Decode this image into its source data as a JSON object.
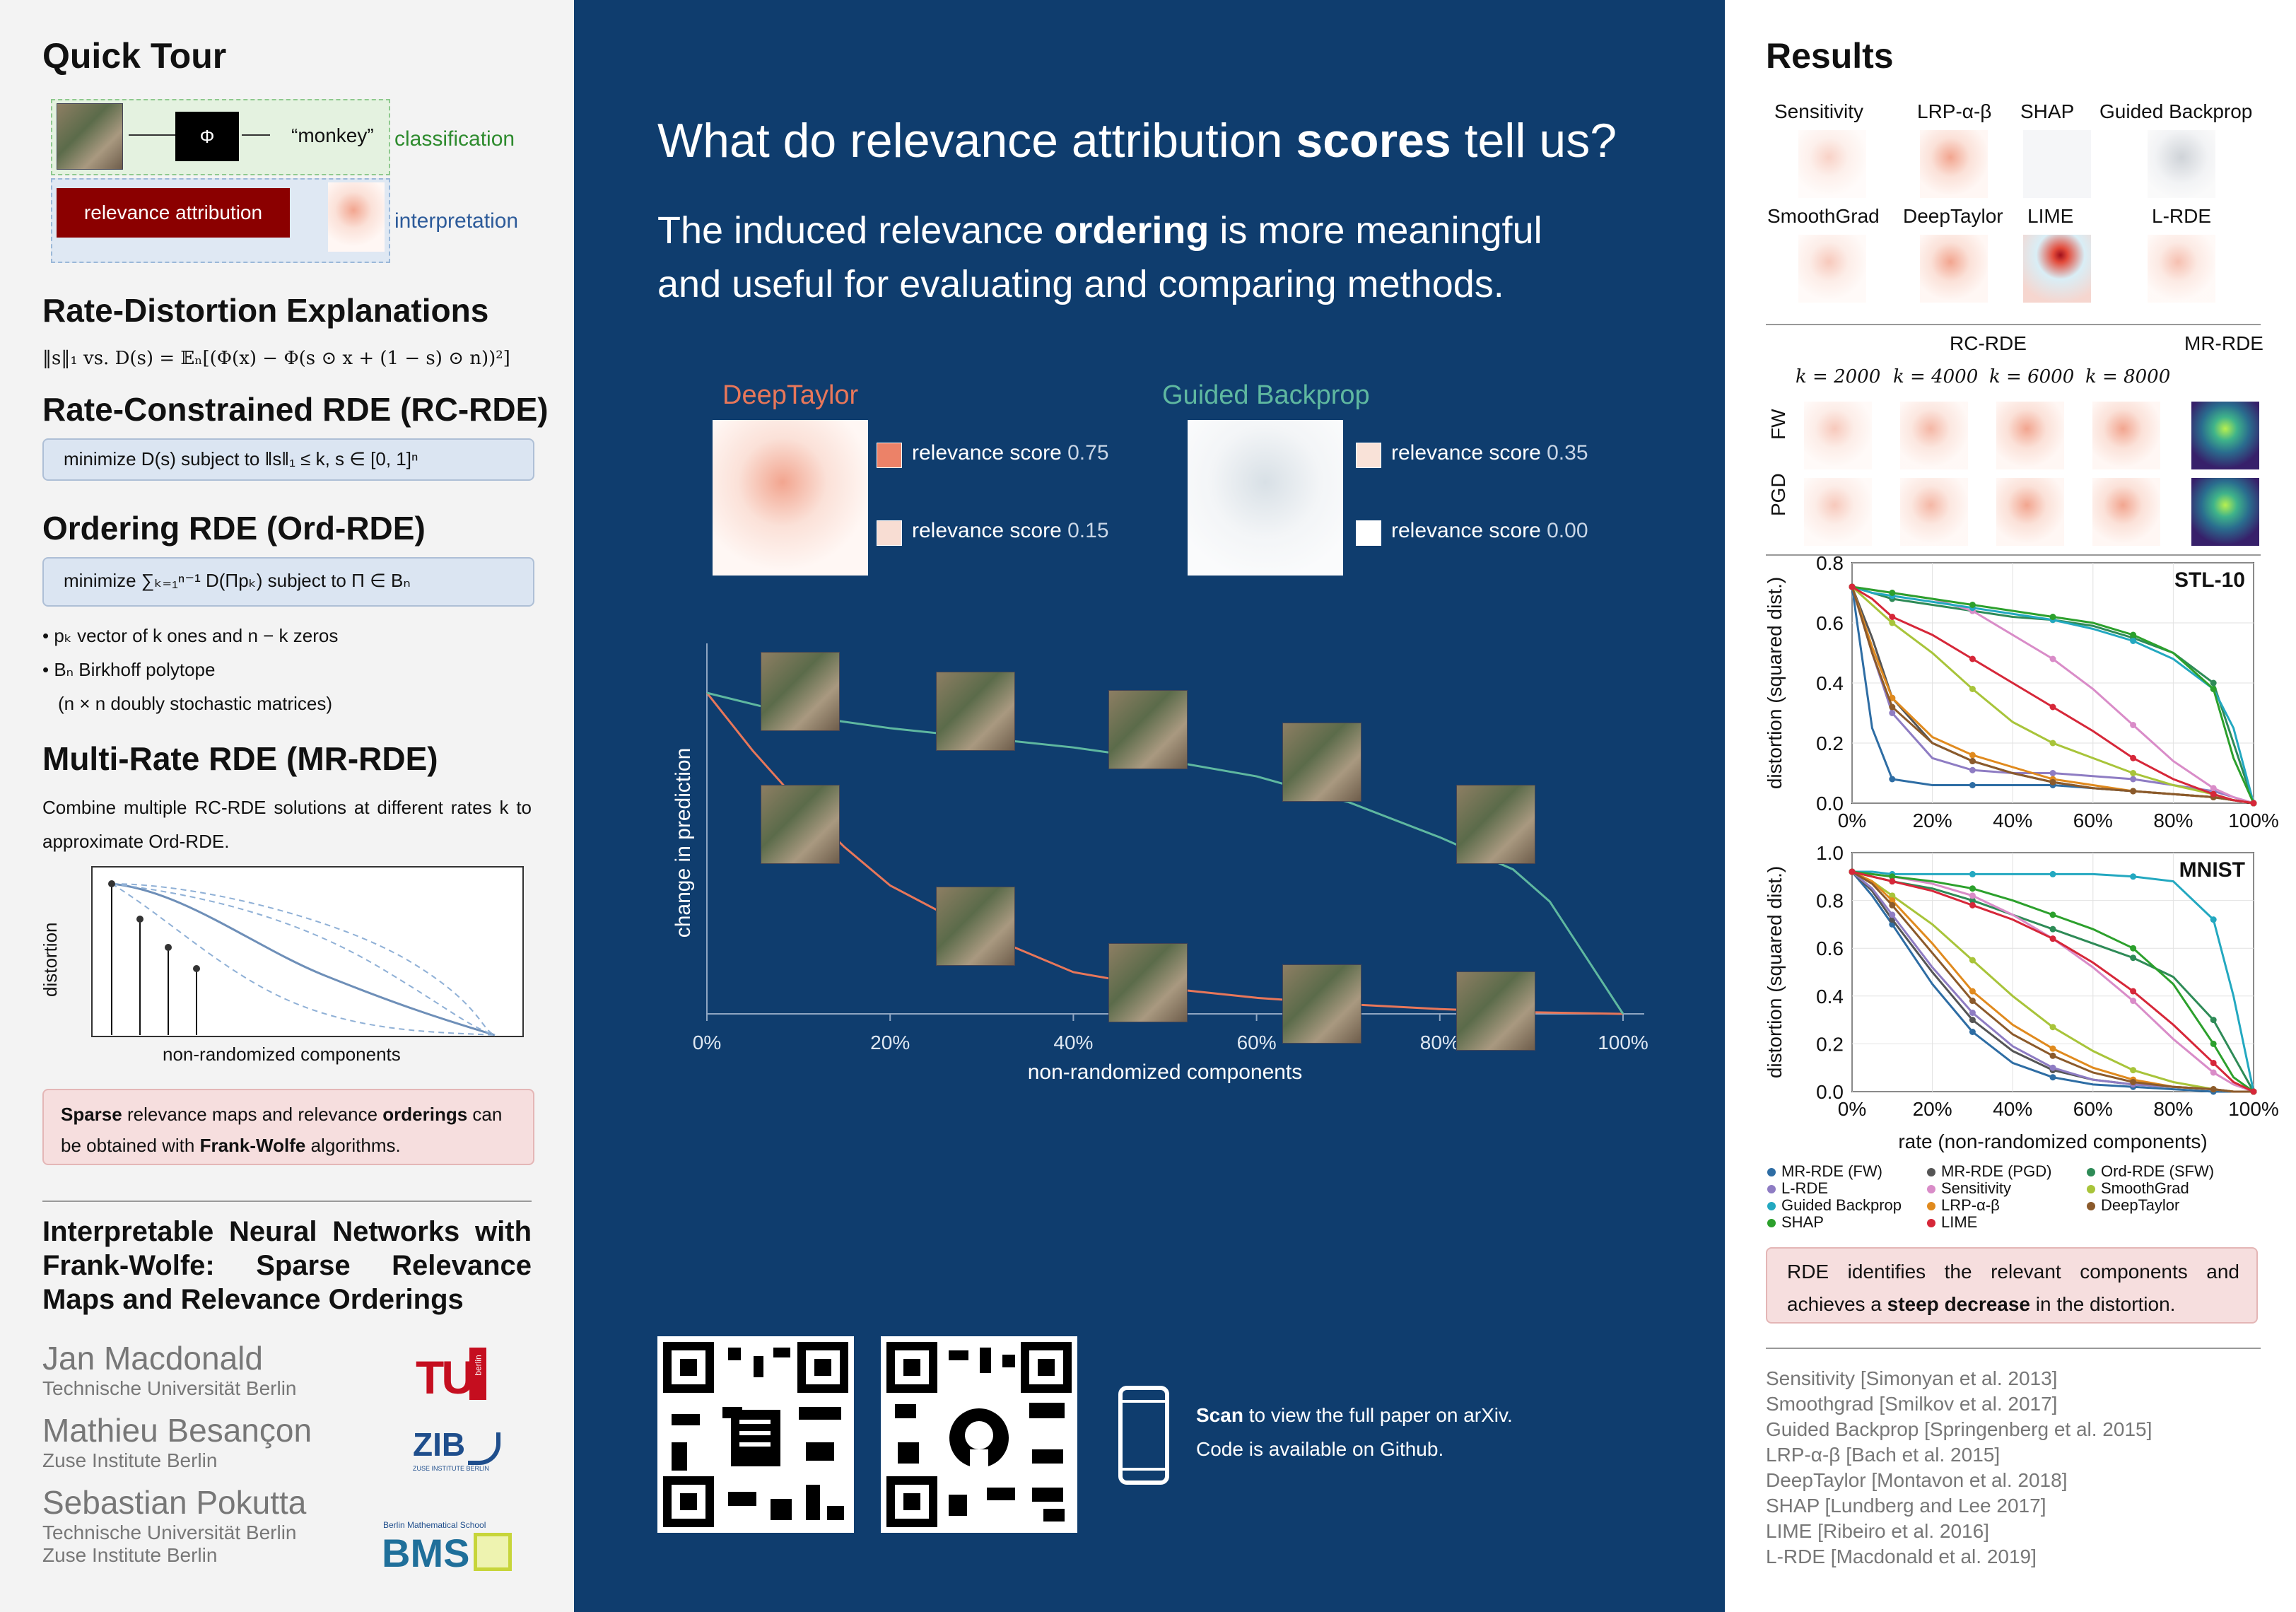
{
  "left": {
    "quick_tour_title": "Quick Tour",
    "tour": {
      "phi": "Φ",
      "monkey": "“monkey”",
      "classification": "classification",
      "relevance_attribution": "relevance attribution",
      "interpretation": "interpretation"
    },
    "rde_title": "Rate-Distortion Explanations",
    "rde_formula": "‖s‖₁  vs.  D(s) = 𝔼ₙ[(Φ(x) − Φ(s ⊙ x + (1 − s) ⊙ n))²]",
    "rcrde_title": "Rate-Constrained RDE (RC-RDE)",
    "rcrde_box": "minimize D(s)    subject to    ‖s‖₁ ≤ k, s ∈ [0, 1]ⁿ",
    "ordrde_title": "Ordering RDE (Ord-RDE)",
    "ordrde_box": "minimize ∑ₖ₌₁ⁿ⁻¹ D(Πpₖ)     subject to     Π ∈ Bₙ",
    "bullets": [
      "• pₖ vector of k ones and n − k zeros",
      "• Bₙ Birkhoff polytope",
      "(n × n doubly stochastic matrices)"
    ],
    "mrrde_title": "Multi-Rate RDE (MR-RDE)",
    "mrrde_text": "Combine multiple RC-RDE solutions at different rates k to approximate Ord-RDE.",
    "sketch_ylabel": "distortion",
    "sketch_xlabel": "non-randomized components",
    "note_html_parts": [
      "Sparse",
      " relevance maps and relevance ",
      "orderings",
      " can be obtained with ",
      "Frank-Wolfe",
      " algorithms."
    ],
    "paper_title": "Interpretable Neural Networks with Frank-Wolfe: Sparse Relevance Maps and Relevance Orderings",
    "authors": [
      {
        "name": "Jan Macdonald",
        "inst": "Technische Universität Berlin"
      },
      {
        "name": "Mathieu Besançon",
        "inst": "Zuse Institute Berlin"
      },
      {
        "name": "Sebastian Pokutta",
        "inst": "Technische Universität Berlin",
        "inst2": "Zuse Institute Berlin"
      }
    ],
    "logos": {
      "tu": "TU",
      "tu_small": "berlin",
      "zib": "ZIB",
      "zib_small": "ZUSE INSTITUTE BERLIN",
      "bms": "BMS",
      "bms_small": "Berlin Mathematical School"
    }
  },
  "middle": {
    "headline_a": "What do relevance attribution ",
    "headline_b": "scores",
    "headline_c": " tell us?",
    "sub_a": "The induced relevance ",
    "sub_b": "ordering",
    "sub_c": " is more meaningful",
    "sub_d": "and useful for evaluating and comparing methods.",
    "deeptaylor_label": "DeepTaylor",
    "guided_label": "Guided Backprop",
    "scores": [
      {
        "text": "relevance score",
        "value": "0.75"
      },
      {
        "text": "relevance score",
        "value": "0.15"
      },
      {
        "text": "relevance score",
        "value": "0.35"
      },
      {
        "text": "relevance score",
        "value": "0.00"
      }
    ],
    "colors": {
      "deeptaylor": "#e8775a",
      "guided": "#5fb8a0"
    },
    "scan_bold": "Scan",
    "scan_rest": " to view the full paper on arXiv.",
    "code_text": "Code is available on Github."
  },
  "middle_chart": {
    "type": "line",
    "xlabel": "non-randomized components",
    "ylabel": "change in prediction",
    "xticks": [
      "0%",
      "20%",
      "40%",
      "60%",
      "80%",
      "100%"
    ],
    "series": [
      {
        "name": "DeepTaylor",
        "x": [
          0,
          0.05,
          0.1,
          0.15,
          0.2,
          0.3,
          0.4,
          0.5,
          0.6,
          0.7,
          0.8,
          0.9,
          1.0
        ],
        "y": [
          1.0,
          0.82,
          0.66,
          0.52,
          0.4,
          0.25,
          0.13,
          0.08,
          0.05,
          0.03,
          0.015,
          0.005,
          0.0
        ]
      },
      {
        "name": "Guided Backprop",
        "x": [
          0,
          0.1,
          0.2,
          0.3,
          0.4,
          0.5,
          0.6,
          0.7,
          0.8,
          0.88,
          0.92,
          1.0
        ],
        "y": [
          1.0,
          0.93,
          0.89,
          0.86,
          0.83,
          0.79,
          0.74,
          0.66,
          0.55,
          0.45,
          0.35,
          0.0
        ]
      }
    ]
  },
  "right": {
    "results_title": "Results",
    "methods_row1": [
      "Sensitivity",
      "LRP-α-β",
      "SHAP",
      "Guided Backprop"
    ],
    "methods_row2": [
      "SmoothGrad",
      "DeepTaylor",
      "LIME",
      "L-RDE"
    ],
    "rcrde_label": "RC-RDE",
    "mrrde_label": "MR-RDE",
    "k_labels": [
      "k = 2000",
      "k = 4000",
      "k = 6000",
      "k = 8000"
    ],
    "row_labels": [
      "FW",
      "PGD"
    ],
    "result_text_a": "RDE identifies the relevant components and achieves a ",
    "result_text_b": "steep decrease",
    "result_text_c": " in the distortion.",
    "references": [
      "Sensitivity [Simonyan et al. 2013]",
      "Smoothgrad [Smilkov et al. 2017]",
      "Guided Backprop [Springenberg et al. 2015]",
      "LRP-α-β [Bach et al. 2015]",
      "DeepTaylor [Montavon et al. 2018]",
      "SHAP [Lundberg and Lee 2017]",
      "LIME [Ribeiro et al. 2016]",
      "L-RDE [Macdonald et al. 2019]"
    ],
    "legend": [
      {
        "name": "MR-RDE (FW)",
        "color": "#2e6da4"
      },
      {
        "name": "MR-RDE (PGD)",
        "color": "#555555"
      },
      {
        "name": "Ord-RDE (SFW)",
        "color": "#2e8b57"
      },
      {
        "name": "L-RDE",
        "color": "#8e7cc3"
      },
      {
        "name": "Sensitivity",
        "color": "#d98cc8"
      },
      {
        "name": "SmoothGrad",
        "color": "#a8c43a"
      },
      {
        "name": "Guided Backprop",
        "color": "#23a8c0"
      },
      {
        "name": "LRP-α-β",
        "color": "#e08a1e"
      },
      {
        "name": "DeepTaylor",
        "color": "#8b5a2b"
      },
      {
        "name": "SHAP",
        "color": "#2ca02c"
      },
      {
        "name": "LIME",
        "color": "#d62739"
      }
    ]
  },
  "chart_data": [
    {
      "type": "line",
      "title": "STL-10",
      "ylabel": "distortion (squared dist.)",
      "ylim": [
        0,
        0.8
      ],
      "yticks": [
        "0.0",
        "0.2",
        "0.4",
        "0.6",
        "0.8"
      ],
      "xticks": [
        "0%",
        "20%",
        "40%",
        "60%",
        "80%",
        "100%"
      ],
      "x": [
        0,
        0.05,
        0.1,
        0.2,
        0.3,
        0.4,
        0.5,
        0.6,
        0.7,
        0.8,
        0.9,
        0.95,
        1.0
      ],
      "series": [
        {
          "name": "MR-RDE (FW)",
          "values": [
            0.72,
            0.25,
            0.08,
            0.06,
            0.06,
            0.06,
            0.06,
            0.05,
            0.04,
            0.03,
            0.02,
            0.01,
            0.0
          ]
        },
        {
          "name": "MR-RDE (PGD)",
          "values": [
            0.72,
            0.55,
            0.35,
            0.2,
            0.14,
            0.1,
            0.07,
            0.05,
            0.04,
            0.03,
            0.02,
            0.01,
            0.0
          ]
        },
        {
          "name": "Ord-RDE (SFW)",
          "values": [
            0.72,
            0.7,
            0.68,
            0.66,
            0.64,
            0.62,
            0.61,
            0.59,
            0.55,
            0.5,
            0.4,
            0.2,
            0.0
          ]
        },
        {
          "name": "L-RDE",
          "values": [
            0.72,
            0.5,
            0.3,
            0.15,
            0.11,
            0.1,
            0.1,
            0.09,
            0.08,
            0.06,
            0.04,
            0.02,
            0.0
          ]
        },
        {
          "name": "Sensitivity",
          "values": [
            0.72,
            0.71,
            0.7,
            0.68,
            0.64,
            0.56,
            0.48,
            0.38,
            0.26,
            0.14,
            0.05,
            0.02,
            0.0
          ]
        },
        {
          "name": "SmoothGrad",
          "values": [
            0.72,
            0.66,
            0.6,
            0.5,
            0.38,
            0.27,
            0.2,
            0.15,
            0.1,
            0.06,
            0.03,
            0.01,
            0.0
          ]
        },
        {
          "name": "Guided Backprop",
          "values": [
            0.72,
            0.7,
            0.69,
            0.67,
            0.65,
            0.63,
            0.61,
            0.58,
            0.54,
            0.48,
            0.38,
            0.25,
            0.0
          ]
        },
        {
          "name": "LRP-α-β",
          "values": [
            0.72,
            0.52,
            0.35,
            0.22,
            0.16,
            0.12,
            0.08,
            0.06,
            0.04,
            0.03,
            0.02,
            0.01,
            0.0
          ]
        },
        {
          "name": "DeepTaylor",
          "values": [
            0.72,
            0.5,
            0.32,
            0.2,
            0.14,
            0.1,
            0.07,
            0.05,
            0.04,
            0.03,
            0.02,
            0.01,
            0.0
          ]
        },
        {
          "name": "SHAP",
          "values": [
            0.72,
            0.71,
            0.7,
            0.68,
            0.66,
            0.64,
            0.62,
            0.6,
            0.56,
            0.5,
            0.38,
            0.15,
            0.0
          ]
        },
        {
          "name": "LIME",
          "values": [
            0.72,
            0.68,
            0.62,
            0.56,
            0.48,
            0.4,
            0.32,
            0.24,
            0.15,
            0.08,
            0.03,
            0.01,
            0.0
          ]
        }
      ]
    },
    {
      "type": "line",
      "title": "MNIST",
      "xlabel": "rate (non-randomized components)",
      "ylabel": "distortion (squared dist.)",
      "ylim": [
        0,
        1.0
      ],
      "yticks": [
        "0.0",
        "0.2",
        "0.4",
        "0.6",
        "0.8",
        "1.0"
      ],
      "xticks": [
        "0%",
        "20%",
        "40%",
        "60%",
        "80%",
        "100%"
      ],
      "x": [
        0,
        0.05,
        0.1,
        0.2,
        0.3,
        0.4,
        0.5,
        0.6,
        0.7,
        0.8,
        0.9,
        0.95,
        1.0
      ],
      "series": [
        {
          "name": "MR-RDE (FW)",
          "values": [
            0.92,
            0.82,
            0.7,
            0.45,
            0.25,
            0.12,
            0.06,
            0.03,
            0.02,
            0.01,
            0.0,
            0.0,
            0.0
          ]
        },
        {
          "name": "MR-RDE (PGD)",
          "values": [
            0.92,
            0.84,
            0.72,
            0.5,
            0.3,
            0.17,
            0.09,
            0.05,
            0.03,
            0.02,
            0.01,
            0.0,
            0.0
          ]
        },
        {
          "name": "Ord-RDE (SFW)",
          "values": [
            0.92,
            0.9,
            0.88,
            0.85,
            0.8,
            0.74,
            0.68,
            0.62,
            0.56,
            0.48,
            0.3,
            0.15,
            0.0
          ]
        },
        {
          "name": "L-RDE",
          "values": [
            0.92,
            0.85,
            0.74,
            0.52,
            0.33,
            0.19,
            0.1,
            0.05,
            0.03,
            0.02,
            0.01,
            0.0,
            0.0
          ]
        },
        {
          "name": "Sensitivity",
          "values": [
            0.92,
            0.91,
            0.9,
            0.87,
            0.82,
            0.74,
            0.64,
            0.52,
            0.38,
            0.22,
            0.08,
            0.03,
            0.0
          ]
        },
        {
          "name": "SmoothGrad",
          "values": [
            0.92,
            0.88,
            0.82,
            0.7,
            0.55,
            0.4,
            0.27,
            0.17,
            0.09,
            0.04,
            0.01,
            0.0,
            0.0
          ]
        },
        {
          "name": "Guided Backprop",
          "values": [
            0.92,
            0.92,
            0.91,
            0.91,
            0.91,
            0.91,
            0.91,
            0.91,
            0.9,
            0.88,
            0.72,
            0.4,
            0.0
          ]
        },
        {
          "name": "LRP-α-β",
          "values": [
            0.92,
            0.88,
            0.8,
            0.62,
            0.42,
            0.28,
            0.18,
            0.1,
            0.05,
            0.02,
            0.01,
            0.0,
            0.0
          ]
        },
        {
          "name": "DeepTaylor",
          "values": [
            0.92,
            0.87,
            0.78,
            0.58,
            0.38,
            0.24,
            0.15,
            0.08,
            0.04,
            0.02,
            0.01,
            0.0,
            0.0
          ]
        },
        {
          "name": "SHAP",
          "values": [
            0.92,
            0.91,
            0.9,
            0.88,
            0.85,
            0.8,
            0.74,
            0.68,
            0.6,
            0.45,
            0.2,
            0.06,
            0.0
          ]
        },
        {
          "name": "LIME",
          "values": [
            0.92,
            0.9,
            0.88,
            0.84,
            0.78,
            0.72,
            0.64,
            0.54,
            0.42,
            0.28,
            0.12,
            0.04,
            0.0
          ]
        }
      ]
    }
  ]
}
